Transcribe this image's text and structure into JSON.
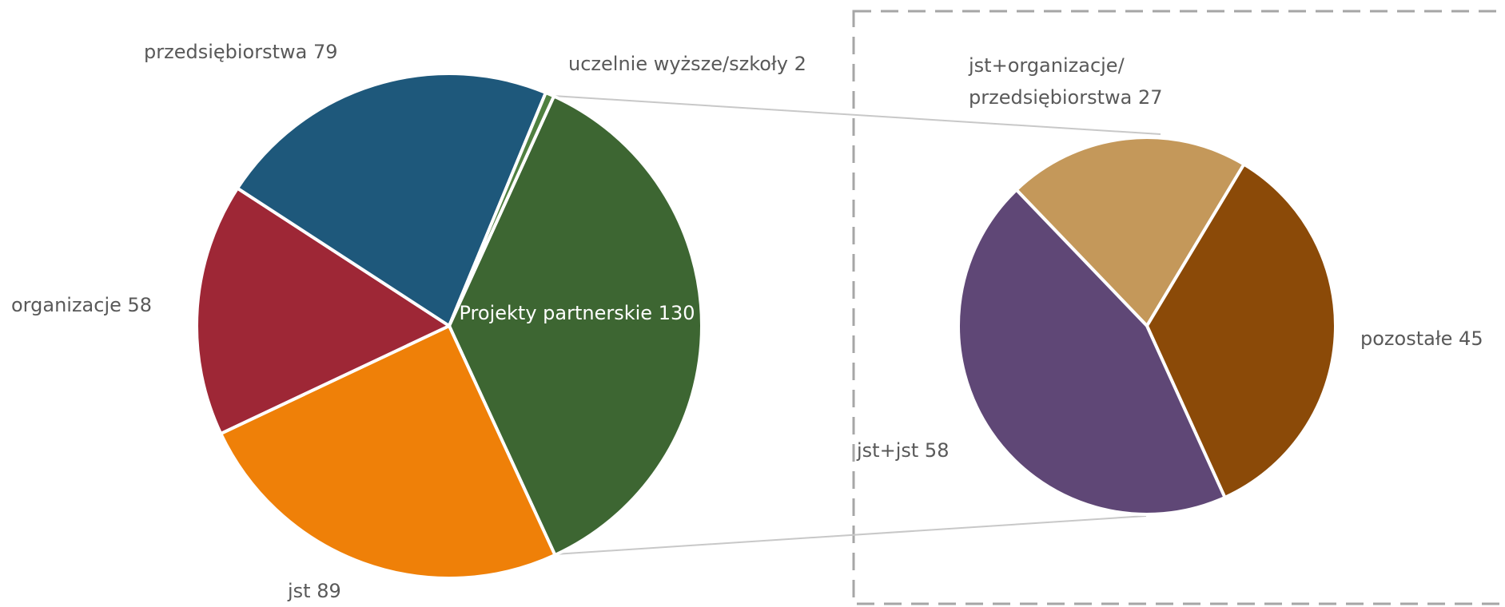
{
  "chart_data": [
    {
      "type": "pie",
      "categories": [
        "Projekty partnerskie",
        "jst",
        "organizacje",
        "przedsiębiorstwa",
        "uczelnie wyższe/szkoły"
      ],
      "values": [
        130,
        89,
        58,
        79,
        2
      ],
      "colors": [
        "#3d6632",
        "#ef8008",
        "#9e2736",
        "#1e587b",
        "#4f8040"
      ]
    },
    {
      "type": "pie",
      "categories": [
        "jst+organizacje/przedsiębiorstwa",
        "pozostałe",
        "jst+jst"
      ],
      "values": [
        27,
        45,
        58
      ],
      "colors": [
        "#c4985a",
        "#8b4a08",
        "#5f4776"
      ]
    }
  ]
}
